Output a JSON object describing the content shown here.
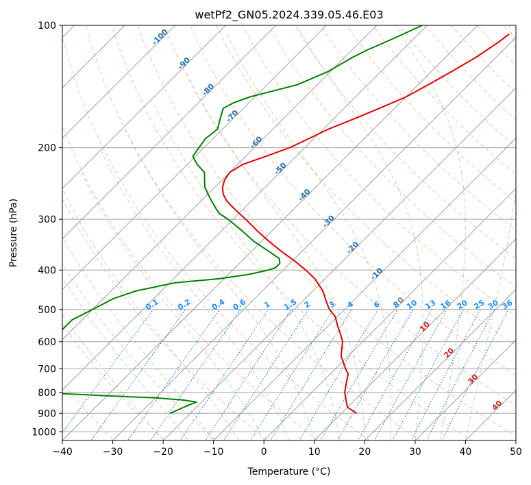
{
  "chart_data": {
    "type": "line",
    "title": "wetPf2_GN05.2024.339.05.46.E03",
    "xlabel": "Temperature (°C)",
    "ylabel": "Pressure (hPa)",
    "xlim": [
      -40,
      50
    ],
    "ylim": [
      1050,
      100
    ],
    "y_scale": "log",
    "x_ticks": [
      -40,
      -30,
      -20,
      -10,
      0,
      10,
      20,
      30,
      40,
      50
    ],
    "x_tick_labels": [
      "−40",
      "−30",
      "−20",
      "−10",
      "0",
      "10",
      "20",
      "30",
      "40",
      "50"
    ],
    "y_ticks": [
      100,
      200,
      300,
      400,
      500,
      600,
      700,
      800,
      900,
      1000
    ],
    "y_tick_labels": [
      "100",
      "200",
      "300",
      "400",
      "500",
      "600",
      "700",
      "800",
      "900",
      "1000"
    ],
    "grid": true,
    "skew_deg": 45,
    "colors": {
      "temperature": "#e00000",
      "dewpoint": "#008000",
      "isotherm": "#a0a0a0",
      "dry_adiabat": "#fa8a6a",
      "moist_adiabat": "#6abf6a",
      "mixing_ratio": "#1e7fe0",
      "isotherm_label": "#1f6fb0",
      "mixing_label": "#1e8fff",
      "zero_iso": "#d9bfa0"
    },
    "series": [
      {
        "role": "temperature",
        "points": [
          [
            105,
            -32
          ],
          [
            110,
            -32.5
          ],
          [
            120,
            -34
          ],
          [
            130,
            -36
          ],
          [
            140,
            -38
          ],
          [
            150,
            -40
          ],
          [
            160,
            -43
          ],
          [
            170,
            -46
          ],
          [
            180,
            -49
          ],
          [
            190,
            -51
          ],
          [
            200,
            -53
          ],
          [
            210,
            -56
          ],
          [
            220,
            -59
          ],
          [
            230,
            -60
          ],
          [
            240,
            -59.5
          ],
          [
            250,
            -58.5
          ],
          [
            260,
            -57
          ],
          [
            270,
            -55
          ],
          [
            280,
            -52.5
          ],
          [
            290,
            -50
          ],
          [
            300,
            -47.5
          ],
          [
            320,
            -43
          ],
          [
            340,
            -38.5
          ],
          [
            360,
            -34
          ],
          [
            380,
            -29.5
          ],
          [
            400,
            -25.5
          ],
          [
            420,
            -22
          ],
          [
            450,
            -18
          ],
          [
            480,
            -15
          ],
          [
            500,
            -13
          ],
          [
            520,
            -10.5
          ],
          [
            550,
            -8
          ],
          [
            580,
            -5.5
          ],
          [
            600,
            -4
          ],
          [
            650,
            -1.5
          ],
          [
            700,
            2
          ],
          [
            720,
            3.5
          ],
          [
            760,
            5
          ],
          [
            800,
            6.5
          ],
          [
            840,
            8.5
          ],
          [
            870,
            10
          ],
          [
            890,
            12
          ],
          [
            900,
            13
          ]
        ]
      },
      {
        "role": "dewpoint",
        "points": [
          [
            100,
            -51
          ],
          [
            105,
            -53
          ],
          [
            110,
            -55
          ],
          [
            115,
            -57
          ],
          [
            120,
            -58.5
          ],
          [
            130,
            -60.5
          ],
          [
            140,
            -64
          ],
          [
            150,
            -71
          ],
          [
            155,
            -73
          ],
          [
            160,
            -74
          ],
          [
            170,
            -72.5
          ],
          [
            180,
            -71
          ],
          [
            190,
            -71.5
          ],
          [
            200,
            -71
          ],
          [
            210,
            -70.5
          ],
          [
            220,
            -68
          ],
          [
            230,
            -65
          ],
          [
            240,
            -63.5
          ],
          [
            250,
            -62
          ],
          [
            260,
            -60
          ],
          [
            270,
            -58
          ],
          [
            280,
            -56
          ],
          [
            290,
            -54
          ],
          [
            300,
            -51
          ],
          [
            320,
            -46
          ],
          [
            340,
            -41.5
          ],
          [
            360,
            -36.5
          ],
          [
            375,
            -33
          ],
          [
            385,
            -32
          ],
          [
            395,
            -32
          ],
          [
            400,
            -33
          ],
          [
            410,
            -36
          ],
          [
            420,
            -41
          ],
          [
            430,
            -49
          ],
          [
            450,
            -55
          ],
          [
            470,
            -58
          ],
          [
            500,
            -60
          ],
          [
            530,
            -62
          ],
          [
            560,
            -62
          ],
          [
            580,
            -62.5
          ],
          [
            600,
            -63
          ],
          [
            620,
            -64
          ],
          [
            640,
            -63
          ],
          [
            660,
            -60
          ],
          [
            680,
            -56
          ],
          [
            700,
            -60
          ],
          [
            720,
            -63
          ],
          [
            740,
            -63
          ],
          [
            755,
            -66
          ],
          [
            765,
            -71
          ],
          [
            775,
            -72
          ],
          [
            785,
            -67
          ],
          [
            795,
            -58
          ],
          [
            805,
            -50
          ],
          [
            815,
            -40
          ],
          [
            825,
            -30
          ],
          [
            835,
            -24
          ],
          [
            845,
            -21
          ],
          [
            860,
            -22
          ],
          [
            880,
            -23
          ],
          [
            900,
            -24
          ]
        ]
      }
    ],
    "isotherm_labels": [
      "-100",
      "-90",
      "-80",
      "-70",
      "-60",
      "-50",
      "-40",
      "-30",
      "-20",
      "-10",
      "0",
      "10",
      "20",
      "30",
      "40"
    ],
    "isotherm_label_values": [
      -100,
      -90,
      -80,
      -70,
      -60,
      -50,
      -40,
      -30,
      -20,
      -10,
      0,
      10,
      20,
      30,
      40
    ],
    "mixing_ratio_labels": [
      "0.1",
      "0.2",
      "0.4",
      "0.6",
      "1",
      "1.5",
      "2",
      "3",
      "4",
      "6",
      "8",
      "10",
      "13",
      "16",
      "20",
      "25",
      "30",
      "36"
    ],
    "mixing_ratio_values": [
      0.1,
      0.2,
      0.4,
      0.6,
      1,
      1.5,
      2,
      3,
      4,
      6,
      8,
      10,
      13,
      16,
      20,
      25,
      30,
      36
    ],
    "mixing_ratio_label_pressure": 500
  }
}
